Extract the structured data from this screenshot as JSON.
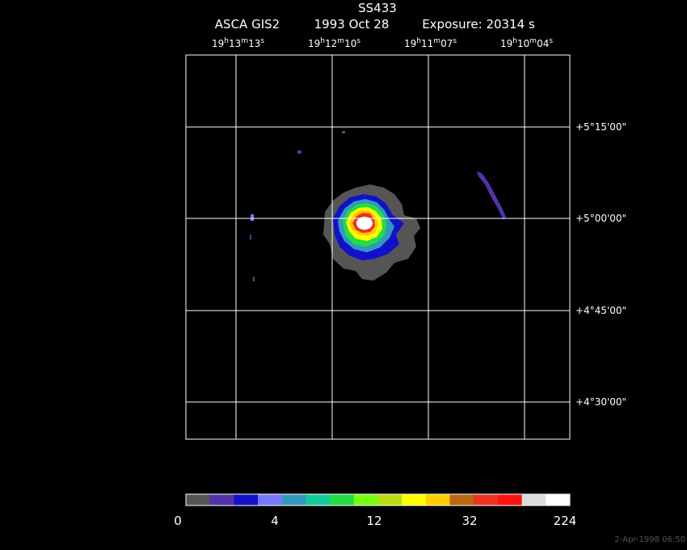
{
  "header": {
    "title": "SS433",
    "subtitle": [
      "ASCA GIS2",
      "1993 Oct 28",
      "Exposure: 20314 s"
    ]
  },
  "ra_labels": [
    [
      "19",
      "h",
      "13",
      "m",
      "13",
      "s"
    ],
    [
      "19",
      "h",
      "12",
      "m",
      "10",
      "s"
    ],
    [
      "19",
      "h",
      "11",
      "m",
      "07",
      "s"
    ],
    [
      "19",
      "h",
      "10",
      "m",
      "04",
      "s"
    ]
  ],
  "dec_labels": [
    "+5°15'00\"",
    "+5°00'00\"",
    "+4°45'00\"",
    "+4°30'00\""
  ],
  "colorbar": {
    "colors": [
      "#555555",
      "#5533aa",
      "#1111cc",
      "#7777ff",
      "#3399bb",
      "#11cc99",
      "#22dd44",
      "#77ff11",
      "#bbdd11",
      "#ffff00",
      "#ffcc00",
      "#bb6611",
      "#ee3322",
      "#ff1111",
      "#dddddd",
      "#ffffff"
    ],
    "labels": [
      "0",
      "4",
      "12",
      "32",
      "224"
    ]
  },
  "footer": {
    "timestamp": "2-Apr-1998 06:50"
  }
}
